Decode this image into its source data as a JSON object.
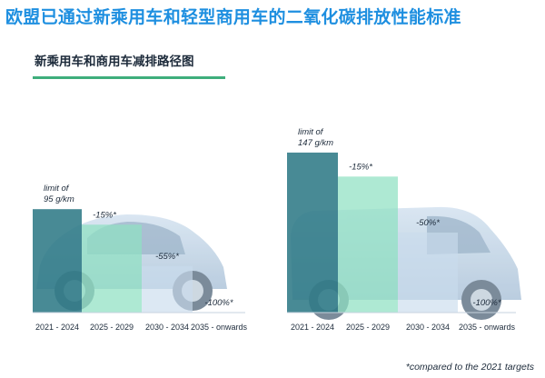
{
  "header": {
    "title": "欧盟已通过新乘用车和轻型商用车的二氧化碳排放性能标准"
  },
  "colors": {
    "header_blue": "#1e8fe0",
    "dark_teal": "#2f7a86",
    "light_green": "#8fe0c2",
    "light_blue": "#c9dced",
    "text_dark": "#1c2a3a",
    "accent_green": "#3fae7c"
  },
  "chart_data": [
    {
      "type": "bar",
      "title": "新乘用车和商用车减排路径图",
      "name": "cars",
      "categories": [
        "2021 - 2024",
        "2025 - 2029",
        "2030 - 2034",
        "2035 - onwards"
      ],
      "values": [
        95,
        80.75,
        42.75,
        0
      ],
      "unit": "g/km",
      "labels": [
        "limit of\n95 g/km",
        "-15%*",
        "-55%*",
        "-100%*"
      ],
      "ylim": [
        0,
        160
      ]
    },
    {
      "type": "bar",
      "name": "vans",
      "categories": [
        "2021 - 2024",
        "2025 - 2029",
        "2030 - 2034",
        "2035 - onwards"
      ],
      "values": [
        147,
        124.95,
        73.5,
        0
      ],
      "unit": "g/km",
      "labels": [
        "limit of\n147 g/km",
        "-15%*",
        "-50%*",
        "-100%*"
      ],
      "ylim": [
        0,
        160
      ]
    }
  ],
  "footnote": "*compared to the 2021 targets"
}
